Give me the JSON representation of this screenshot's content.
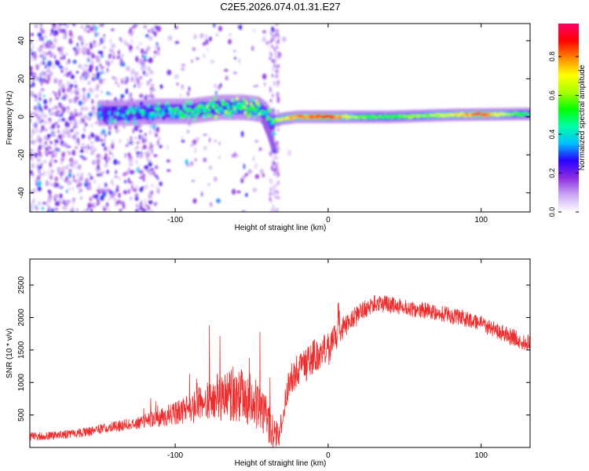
{
  "title": "C2E5.2026.074.01.31.E27",
  "chart_data": [
    {
      "type": "heatmap",
      "xlabel": "Height of straight line (km)",
      "ylabel": "Frequency (Hz)",
      "xlim": [
        -195,
        132
      ],
      "ylim": [
        -50,
        49
      ],
      "xticks": [
        -100,
        0,
        100
      ],
      "xtick_labels": [
        "-100",
        "0",
        "100"
      ],
      "yticks": [
        -40,
        -20,
        0,
        20,
        40
      ],
      "ytick_labels": [
        "-40",
        "-20",
        "0",
        "20",
        "40"
      ],
      "colorbar": {
        "label": "Normalized spectral amplitude",
        "range": [
          0,
          0.97
        ],
        "ticks": [
          0,
          0.2,
          0.4,
          0.6,
          0.8
        ],
        "tick_labels": [
          "0.0",
          "0.2",
          "0.4",
          "0.6",
          "0.8"
        ],
        "colors": [
          "#ffffff",
          "#c9a6f2",
          "#8b2be2",
          "#2a00ff",
          "#00bfff",
          "#00ffaa",
          "#00ff00",
          "#aaff00",
          "#ffff00",
          "#ff8800",
          "#ff0000",
          "#ff0066"
        ]
      },
      "ridge_km": [
        -150,
        -130,
        -110,
        -90,
        -70,
        -55,
        -45,
        -40,
        -37,
        -35,
        -30,
        -20,
        -10,
        0,
        10,
        20,
        40,
        60,
        80,
        100,
        120,
        132
      ],
      "ridge_hz": [
        2,
        2,
        3,
        3,
        5,
        5,
        4,
        1,
        -4,
        -2,
        -1,
        0,
        0,
        0,
        0,
        0,
        0,
        0.5,
        1,
        1.2,
        1.4,
        1.5
      ],
      "ridge_amp": [
        0.3,
        0.35,
        0.4,
        0.45,
        0.5,
        0.55,
        0.55,
        0.45,
        0.3,
        0.6,
        0.7,
        0.8,
        0.85,
        0.9,
        0.75,
        0.6,
        0.55,
        0.6,
        0.7,
        0.85,
        0.6,
        0.5
      ],
      "branch": {
        "km": [
          -42,
          -40,
          -38,
          -36,
          -35
        ],
        "hz": [
          -2,
          -6,
          -10,
          -15,
          -18
        ]
      }
    },
    {
      "type": "line",
      "xlabel": "Height of straight line (km)",
      "ylabel": "SNR (10 * v/v)",
      "xlim": [
        -195,
        132
      ],
      "ylim": [
        0,
        2900
      ],
      "xticks": [
        -100,
        0,
        100
      ],
      "xtick_labels": [
        "-100",
        "0",
        "100"
      ],
      "yticks": [
        500,
        1000,
        1500,
        2000,
        2500
      ],
      "ytick_labels": [
        "500",
        "1000",
        "1500",
        "2000",
        "2500"
      ],
      "series": [
        {
          "name": "SNR",
          "color": "#ee2e2e",
          "x": [
            -195,
            -180,
            -160,
            -140,
            -125,
            -110,
            -95,
            -85,
            -75,
            -65,
            -55,
            -45,
            -38,
            -32,
            -28,
            -24,
            -20,
            -15,
            -10,
            -5,
            0,
            5,
            10,
            15,
            20,
            25,
            30,
            40,
            50,
            60,
            70,
            80,
            90,
            100,
            110,
            120,
            132
          ],
          "y": [
            170,
            180,
            230,
            320,
            380,
            460,
            560,
            650,
            750,
            800,
            780,
            650,
            320,
            150,
            800,
            1050,
            1200,
            1250,
            1400,
            1450,
            1500,
            1700,
            1850,
            1950,
            2050,
            2150,
            2220,
            2200,
            2150,
            2120,
            2080,
            2030,
            1980,
            1900,
            1800,
            1700,
            1600
          ],
          "noise": [
            80,
            80,
            90,
            100,
            120,
            180,
            250,
            350,
            420,
            500,
            520,
            500,
            400,
            200,
            300,
            300,
            300,
            320,
            330,
            330,
            350,
            250,
            220,
            200,
            200,
            180,
            170,
            170,
            160,
            160,
            160,
            160,
            160,
            160,
            160,
            170,
            170
          ]
        }
      ]
    }
  ]
}
